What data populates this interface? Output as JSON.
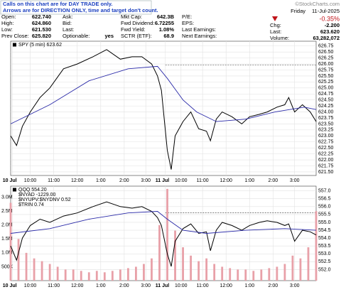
{
  "header": {
    "notice": [
      "Calls on this chart are for DAY TRADE only.",
      "Arrows are for DIRECTION ONLY, time and target don't count."
    ],
    "brand": "©StockCharts.com",
    "day": "Friday",
    "date": "11-Jul-2025",
    "change_pct": "-0.35%",
    "columns": [
      [
        {
          "label": "Open:",
          "value": "622.740"
        },
        {
          "label": "High:",
          "value": "624.860"
        },
        {
          "label": "Low:",
          "value": "621.530"
        },
        {
          "label": "Prev Close:",
          "value": "625.820"
        }
      ],
      [
        {
          "label": "Ask:",
          "value": ""
        },
        {
          "label": "Bid:",
          "value": ""
        },
        {
          "label": "Last:",
          "value": ""
        },
        {
          "label": "Optionable:",
          "value": "yes"
        }
      ],
      [
        {
          "label": "Mkt Cap:",
          "value": "642.3B"
        },
        {
          "label": "Fwd Dividend:",
          "value": "6.72255"
        },
        {
          "label": "Fwd Yield:",
          "value": "1.08%"
        },
        {
          "label": "SCTR (ETF):",
          "value": "68.9"
        }
      ],
      [
        {
          "label": "P/E:",
          "value": ""
        },
        {
          "label": "EPS:",
          "value": ""
        },
        {
          "label": "Last Earnings:",
          "value": ""
        },
        {
          "label": "Next Earnings:",
          "value": ""
        }
      ],
      [
        {
          "label": "Chg:",
          "value": "-2.200"
        },
        {
          "label": "Last:",
          "value": "623.620"
        },
        {
          "label": "Volume:",
          "value": "63,282,072"
        }
      ]
    ]
  },
  "chart_data": [
    {
      "type": "line",
      "xlim": [
        0,
        156
      ],
      "ylim": [
        621.35,
        626.95
      ],
      "grid": true,
      "xticks": [
        {
          "value": 1,
          "label": "10 Jul"
        },
        {
          "value": 10,
          "label": "10:00"
        },
        {
          "value": 22,
          "label": "11:00"
        },
        {
          "value": 34,
          "label": "12:00"
        },
        {
          "value": 46,
          "label": "1:00"
        },
        {
          "value": 58,
          "label": "2:00"
        },
        {
          "value": 69,
          "label": "3:00"
        },
        {
          "value": 79,
          "label": "11 Jul"
        },
        {
          "value": 87,
          "label": "10:00"
        },
        {
          "value": 98,
          "label": "11:00"
        },
        {
          "value": 110,
          "label": "12:00"
        },
        {
          "value": 122,
          "label": "1:00"
        },
        {
          "value": 134,
          "label": "2:00"
        },
        {
          "value": 145,
          "label": "3:00"
        }
      ],
      "yticks": [
        626.75,
        {
          "value": 626.5,
          "label": "626.50"
        },
        626.25,
        {
          "value": 626,
          "label": "626.00"
        },
        625.75,
        {
          "value": 625.5,
          "label": "625.50"
        },
        625.25,
        {
          "value": 625,
          "label": "625.00"
        },
        624.75,
        {
          "value": 624.5,
          "label": "624.50"
        },
        624.25,
        {
          "value": 624,
          "label": "624.00"
        },
        623.75,
        {
          "value": 623.5,
          "label": "623.50"
        },
        623.25,
        {
          "value": 623,
          "label": "623.00"
        },
        622.75,
        {
          "value": 622.5,
          "label": "622.50"
        },
        622.25,
        {
          "value": 622,
          "label": "622.00"
        },
        621.75,
        {
          "value": 621.5,
          "label": "621.50"
        }
      ],
      "reference_line": {
        "value": 625.95,
        "from_x": 79
      },
      "series": [
        {
          "name": "SPY (5 min) 623.62",
          "color": "#000000",
          "x": [
            0,
            3,
            6,
            10,
            15,
            20,
            27,
            34,
            42,
            49,
            56,
            62,
            67,
            72,
            75,
            77,
            80,
            82,
            84,
            88,
            92,
            96,
            100,
            102,
            105,
            108,
            113,
            118,
            122,
            127,
            131,
            136,
            140,
            142,
            145,
            149,
            153,
            156
          ],
          "values": [
            623.0,
            622.6,
            623.4,
            624.0,
            624.6,
            625.0,
            625.8,
            626.0,
            626.3,
            626.6,
            626.2,
            626.3,
            626.3,
            626.0,
            625.5,
            624.9,
            622.4,
            621.6,
            623.0,
            623.6,
            624.0,
            623.3,
            623.2,
            622.8,
            623.7,
            624.0,
            623.8,
            623.5,
            623.8,
            623.9,
            624.0,
            624.2,
            624.3,
            624.6,
            624.0,
            624.3,
            624.0,
            623.6
          ]
        },
        {
          "color": "#2a2aa8",
          "x": [
            0,
            20,
            40,
            60,
            75,
            80,
            88,
            95,
            105,
            120,
            135,
            150,
            156
          ],
          "values": [
            623.5,
            624.3,
            625.3,
            625.8,
            625.9,
            625.4,
            624.5,
            624.0,
            623.6,
            623.7,
            624.0,
            624.2,
            624.1
          ]
        }
      ]
    },
    {
      "type": "line",
      "xlim": [
        0,
        156
      ],
      "ylim": [
        551.3,
        557.3
      ],
      "y2lim": [
        0,
        3400000
      ],
      "grid": true,
      "xticks": [
        {
          "value": 1,
          "label": "10 Jul"
        },
        {
          "value": 10,
          "label": "10:00"
        },
        {
          "value": 22,
          "label": "11:00"
        },
        {
          "value": 34,
          "label": "12:00"
        },
        {
          "value": 46,
          "label": "1:00"
        },
        {
          "value": 58,
          "label": "2:00"
        },
        {
          "value": 69,
          "label": "3:00"
        },
        {
          "value": 79,
          "label": "11 Jul"
        },
        {
          "value": 87,
          "label": "10:00"
        },
        {
          "value": 98,
          "label": "11:00"
        },
        {
          "value": 110,
          "label": "12:00"
        },
        {
          "value": 122,
          "label": "1:00"
        },
        {
          "value": 134,
          "label": "2:00"
        },
        {
          "value": 145,
          "label": "3:00"
        }
      ],
      "yticks": [
        {
          "value": 557,
          "label": "557.0"
        },
        556.5,
        {
          "value": 556,
          "label": "556.0"
        },
        555.5,
        {
          "value": 555,
          "label": "555.0"
        },
        554.5,
        {
          "value": 554,
          "label": "554.0"
        },
        553.5,
        {
          "value": 553,
          "label": "553.0"
        },
        552.5,
        {
          "value": 552,
          "label": "552.0"
        }
      ],
      "y2ticks": [
        {
          "value": 3000000,
          "label": "3.0M"
        },
        {
          "value": 2500000,
          "label": "2.5M"
        },
        {
          "value": 2000000,
          "label": "2.0M"
        },
        {
          "value": 1500000,
          "label": "1.5M"
        },
        {
          "value": 1000000,
          "label": "1.0M"
        },
        {
          "value": 500000,
          "label": "500K"
        }
      ],
      "reference_line": {
        "value": 555.6,
        "from_x": 79
      },
      "indicator_labels": [
        "$NYAD -1229.00",
        "$NYUPV:$NYDNV 0.52",
        "$TRIN 0.74"
      ],
      "series": [
        {
          "type": "bar",
          "axis": "y2",
          "color": "#e8a0a8",
          "x": [
            0,
            4,
            8,
            12,
            16,
            20,
            24,
            28,
            32,
            36,
            40,
            44,
            48,
            52,
            56,
            60,
            64,
            68,
            72,
            76,
            80,
            84,
            88,
            92,
            96,
            100,
            104,
            108,
            112,
            116,
            120,
            124,
            128,
            132,
            136,
            140,
            144,
            148,
            152,
            156
          ],
          "values": [
            2800000,
            1500000,
            1000000,
            800000,
            700000,
            600000,
            500000,
            400000,
            400000,
            350000,
            300000,
            350000,
            300000,
            350000,
            400000,
            450000,
            500000,
            600000,
            800000,
            2000000,
            3300000,
            1800000,
            1200000,
            900000,
            700000,
            800000,
            600000,
            500000,
            450000,
            400000,
            400000,
            350000,
            400000,
            450000,
            500000,
            600000,
            900000,
            800000,
            1200000,
            2500000
          ]
        },
        {
          "name": "QQQ 554.20",
          "color": "#000000",
          "x": [
            0,
            3,
            6,
            10,
            15,
            20,
            27,
            34,
            42,
            49,
            56,
            62,
            67,
            72,
            75,
            77,
            80,
            82,
            84,
            88,
            92,
            96,
            100,
            102,
            105,
            108,
            113,
            118,
            122,
            127,
            131,
            136,
            140,
            142,
            145,
            149,
            153,
            156
          ],
          "values": [
            553.5,
            552.6,
            554.0,
            554.8,
            555.2,
            555.0,
            555.4,
            555.6,
            556.0,
            556.3,
            556.0,
            555.9,
            556.0,
            555.7,
            555.3,
            554.8,
            553.0,
            552.2,
            553.8,
            554.6,
            554.9,
            554.3,
            554.4,
            553.2,
            554.5,
            555.0,
            554.8,
            554.5,
            554.8,
            555.0,
            555.1,
            555.0,
            554.8,
            554.9,
            553.8,
            554.5,
            554.4,
            554.2
          ]
        },
        {
          "color": "#2a2aa8",
          "x": [
            0,
            20,
            40,
            60,
            75,
            80,
            88,
            100,
            120,
            140,
            156
          ],
          "values": [
            554.3,
            554.6,
            555.2,
            555.6,
            555.7,
            555.2,
            554.5,
            554.3,
            554.5,
            554.6,
            554.5
          ]
        }
      ]
    }
  ]
}
